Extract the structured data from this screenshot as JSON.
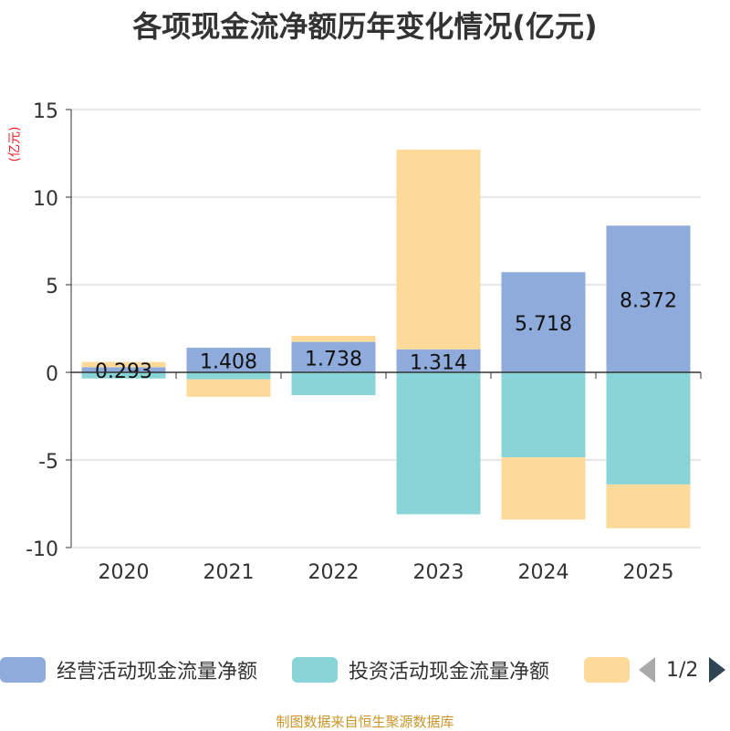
{
  "chart_data": {
    "type": "bar",
    "stacked": true,
    "title": "各项现金流净额历年变化情况(亿元)",
    "ylabel": "(亿元)",
    "ylim": [
      -10,
      15
    ],
    "yticks": [
      15,
      10,
      5,
      0,
      -5,
      -10
    ],
    "categories": [
      "2020",
      "2021",
      "2022",
      "2023",
      "2024",
      "2025"
    ],
    "series": [
      {
        "name": "经营活动现金流量净额",
        "color": "#8eabdb",
        "values": [
          0.293,
          1.408,
          1.738,
          1.314,
          5.718,
          8.372
        ],
        "labels": [
          "0.293",
          "1.408",
          "1.738",
          "1.314",
          "5.718",
          "8.372"
        ]
      },
      {
        "name": "投资活动现金流量净额",
        "color": "#88d4d6",
        "values": [
          -0.35,
          -0.4,
          -1.3,
          -8.1,
          -4.85,
          -6.4
        ]
      },
      {
        "name": "",
        "color": "#fdd99a",
        "values": [
          0.3,
          -1.0,
          0.35,
          11.4,
          -3.55,
          -2.5
        ]
      }
    ]
  },
  "legend": {
    "pager": "1/2"
  },
  "source_note": "制图数据来自恒生聚源数据库"
}
